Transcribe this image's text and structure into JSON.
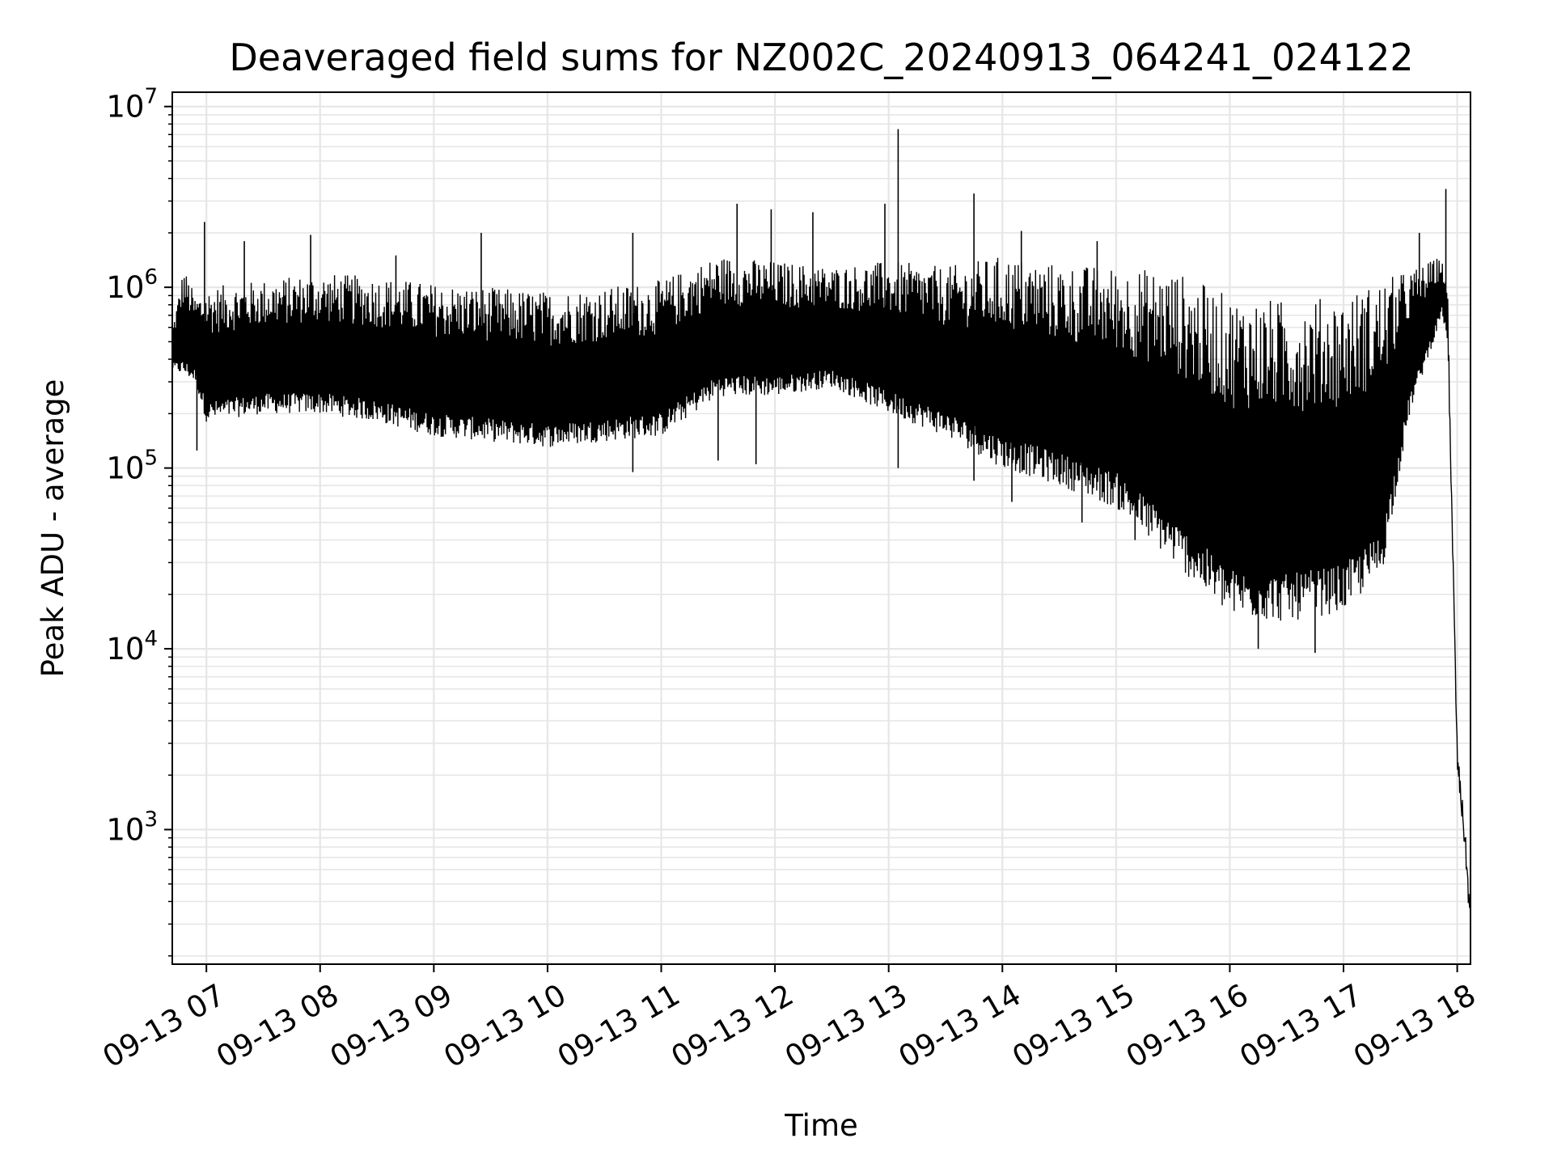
{
  "chart_data": {
    "type": "line",
    "title": "Deaveraged field sums for NZ002C_20240913_064241_024122",
    "xlabel": "Time",
    "ylabel": "Peak ADU - average",
    "yscale": "log",
    "grid": true,
    "line_color": "#000000",
    "grid_color": "#e6e6e6",
    "xlim": [
      "2024-09-13 06:42",
      "2024-09-13 18:07"
    ],
    "ylim": [
      180,
      12000000
    ],
    "x_ticks": [
      {
        "value": "2024-09-13 07:00",
        "label": "09-13 07"
      },
      {
        "value": "2024-09-13 08:00",
        "label": "09-13 08"
      },
      {
        "value": "2024-09-13 09:00",
        "label": "09-13 09"
      },
      {
        "value": "2024-09-13 10:00",
        "label": "09-13 10"
      },
      {
        "value": "2024-09-13 11:00",
        "label": "09-13 11"
      },
      {
        "value": "2024-09-13 12:00",
        "label": "09-13 12"
      },
      {
        "value": "2024-09-13 13:00",
        "label": "09-13 13"
      },
      {
        "value": "2024-09-13 14:00",
        "label": "09-13 14"
      },
      {
        "value": "2024-09-13 15:00",
        "label": "09-13 15"
      },
      {
        "value": "2024-09-13 16:00",
        "label": "09-13 16"
      },
      {
        "value": "2024-09-13 17:00",
        "label": "09-13 17"
      },
      {
        "value": "2024-09-13 18:00",
        "label": "09-13 18"
      }
    ],
    "y_ticks": [
      {
        "value": 1000,
        "base": "10",
        "exp": "3"
      },
      {
        "value": 10000,
        "base": "10",
        "exp": "4"
      },
      {
        "value": 100000,
        "base": "10",
        "exp": "5"
      },
      {
        "value": 1000000,
        "base": "10",
        "exp": "6"
      },
      {
        "value": 10000000,
        "base": "10",
        "exp": "7"
      }
    ],
    "series": [
      {
        "upper_envelope": [
          [
            "2024-09-13 06:42",
            600000
          ],
          [
            "2024-09-13 06:48",
            1300000
          ],
          [
            "2024-09-13 06:54",
            900000
          ],
          [
            "2024-09-13 07:00",
            1000000
          ],
          [
            "2024-09-13 07:30",
            1100000
          ],
          [
            "2024-09-13 08:00",
            1200000
          ],
          [
            "2024-09-13 08:30",
            1150000
          ],
          [
            "2024-09-13 09:00",
            1050000
          ],
          [
            "2024-09-13 09:30",
            1000000
          ],
          [
            "2024-09-13 10:00",
            950000
          ],
          [
            "2024-09-13 10:30",
            1000000
          ],
          [
            "2024-09-13 11:00",
            1100000
          ],
          [
            "2024-09-13 11:30",
            1500000
          ],
          [
            "2024-09-13 12:00",
            1400000
          ],
          [
            "2024-09-13 12:30",
            1300000
          ],
          [
            "2024-09-13 13:00",
            1400000
          ],
          [
            "2024-09-13 13:30",
            1300000
          ],
          [
            "2024-09-13 14:00",
            1500000
          ],
          [
            "2024-09-13 14:30",
            1350000
          ],
          [
            "2024-09-13 15:00",
            1300000
          ],
          [
            "2024-09-13 15:30",
            1250000
          ],
          [
            "2024-09-13 16:00",
            900000
          ],
          [
            "2024-09-13 16:30",
            850000
          ],
          [
            "2024-09-13 17:00",
            900000
          ],
          [
            "2024-09-13 17:20",
            1100000
          ],
          [
            "2024-09-13 17:40",
            1300000
          ],
          [
            "2024-09-13 17:52",
            1500000
          ],
          [
            "2024-09-13 17:55",
            900000
          ],
          [
            "2024-09-13 18:00",
            3000
          ],
          [
            "2024-09-13 18:04",
            1000
          ],
          [
            "2024-09-13 18:07",
            300
          ]
        ],
        "lower_envelope": [
          [
            "2024-09-13 06:42",
            350000
          ],
          [
            "2024-09-13 06:54",
            300000
          ],
          [
            "2024-09-13 07:00",
            180000
          ],
          [
            "2024-09-13 07:30",
            200000
          ],
          [
            "2024-09-13 08:00",
            200000
          ],
          [
            "2024-09-13 08:30",
            180000
          ],
          [
            "2024-09-13 09:00",
            150000
          ],
          [
            "2024-09-13 09:30",
            140000
          ],
          [
            "2024-09-13 10:00",
            130000
          ],
          [
            "2024-09-13 10:30",
            140000
          ],
          [
            "2024-09-13 11:00",
            150000
          ],
          [
            "2024-09-13 11:30",
            250000
          ],
          [
            "2024-09-13 12:00",
            250000
          ],
          [
            "2024-09-13 12:30",
            280000
          ],
          [
            "2024-09-13 13:00",
            200000
          ],
          [
            "2024-09-13 13:30",
            150000
          ],
          [
            "2024-09-13 14:00",
            100000
          ],
          [
            "2024-09-13 14:30",
            80000
          ],
          [
            "2024-09-13 15:00",
            60000
          ],
          [
            "2024-09-13 15:30",
            30000
          ],
          [
            "2024-09-13 16:00",
            15000
          ],
          [
            "2024-09-13 16:30",
            14000
          ],
          [
            "2024-09-13 17:00",
            16000
          ],
          [
            "2024-09-13 17:20",
            25000
          ],
          [
            "2024-09-13 17:35",
            200000
          ],
          [
            "2024-09-13 17:52",
            700000
          ],
          [
            "2024-09-13 17:55",
            500000
          ],
          [
            "2024-09-13 18:00",
            2000
          ],
          [
            "2024-09-13 18:04",
            800
          ],
          [
            "2024-09-13 18:07",
            300
          ]
        ],
        "peaks": [
          [
            "2024-09-13 06:59",
            2300000
          ],
          [
            "2024-09-13 07:20",
            1800000
          ],
          [
            "2024-09-13 07:55",
            1950000
          ],
          [
            "2024-09-13 08:40",
            1500000
          ],
          [
            "2024-09-13 09:25",
            2000000
          ],
          [
            "2024-09-13 10:45",
            2000000
          ],
          [
            "2024-09-13 11:40",
            2900000
          ],
          [
            "2024-09-13 11:58",
            2700000
          ],
          [
            "2024-09-13 12:20",
            2600000
          ],
          [
            "2024-09-13 12:58",
            2900000
          ],
          [
            "2024-09-13 13:05",
            7500000
          ],
          [
            "2024-09-13 13:45",
            3300000
          ],
          [
            "2024-09-13 14:10",
            2050000
          ],
          [
            "2024-09-13 14:50",
            1800000
          ],
          [
            "2024-09-13 17:40",
            2000000
          ],
          [
            "2024-09-13 17:54",
            3500000
          ]
        ],
        "dips": [
          [
            "2024-09-13 06:55",
            125000
          ],
          [
            "2024-09-13 10:45",
            95000
          ],
          [
            "2024-09-13 11:30",
            110000
          ],
          [
            "2024-09-13 11:50",
            105000
          ],
          [
            "2024-09-13 13:05",
            100000
          ],
          [
            "2024-09-13 13:45",
            85000
          ],
          [
            "2024-09-13 14:05",
            65000
          ],
          [
            "2024-09-13 14:42",
            50000
          ],
          [
            "2024-09-13 15:10",
            40000
          ],
          [
            "2024-09-13 16:15",
            10000
          ],
          [
            "2024-09-13 16:45",
            9500
          ]
        ]
      }
    ]
  }
}
